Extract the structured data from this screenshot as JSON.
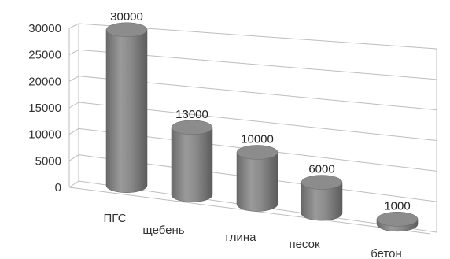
{
  "chart_data": {
    "type": "bar",
    "style": "3d-cylinder",
    "categories": [
      "ПГС",
      "щебень",
      "глина",
      "песок",
      "бетон"
    ],
    "values": [
      30000,
      13000,
      10000,
      6000,
      1000
    ],
    "data_labels": [
      "30000",
      "13000",
      "10000",
      "6000",
      "1000"
    ],
    "y_ticks": [
      "0",
      "5000",
      "10000",
      "15000",
      "20000",
      "25000",
      "30000"
    ],
    "ylim": [
      0,
      30000
    ],
    "grid": true,
    "legend": "none",
    "bar_color": "#808080"
  }
}
